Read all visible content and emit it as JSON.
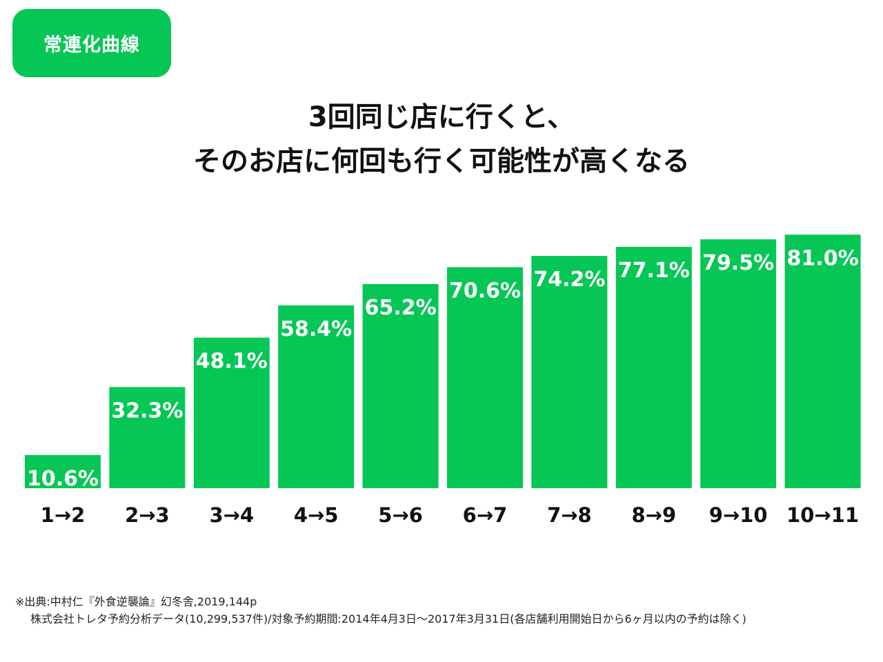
{
  "badge": {
    "label": "常連化曲線"
  },
  "title": {
    "line1": "3回同じ店に行くと、",
    "line2": "そのお店に何回も行く可能性が高くなる"
  },
  "chart_data": {
    "type": "bar",
    "categories": [
      "1→2",
      "2→3",
      "3→4",
      "4→5",
      "5→6",
      "6→7",
      "7→8",
      "8→9",
      "9→10",
      "10→11"
    ],
    "values": [
      10.6,
      32.3,
      48.1,
      58.4,
      65.2,
      70.6,
      74.2,
      77.1,
      79.5,
      81.0
    ],
    "data_labels": [
      "10.6%",
      "32.3%",
      "48.1%",
      "58.4%",
      "65.2%",
      "70.6%",
      "74.2%",
      "77.1%",
      "79.5%",
      "81.0%"
    ],
    "title": "3回同じ店に行くと、そのお店に何回も行く可能性が高くなる",
    "xlabel": "",
    "ylabel": "",
    "ylim": [
      0,
      100
    ],
    "grid": false,
    "legend": "none",
    "bar_color": "#06c755"
  },
  "source": {
    "line1": "※出典:中村仁『外食逆襲論』幻冬舎,2019,144p",
    "line2": "株式会社トレタ予約分析データ(10,299,537件)/対象予約期間:2014年4月3日〜2017年3月31日(各店舗利用開始日から6ヶ月以内の予約は除く)"
  },
  "colors": {
    "accent": "#06c755",
    "text": "#111111"
  }
}
